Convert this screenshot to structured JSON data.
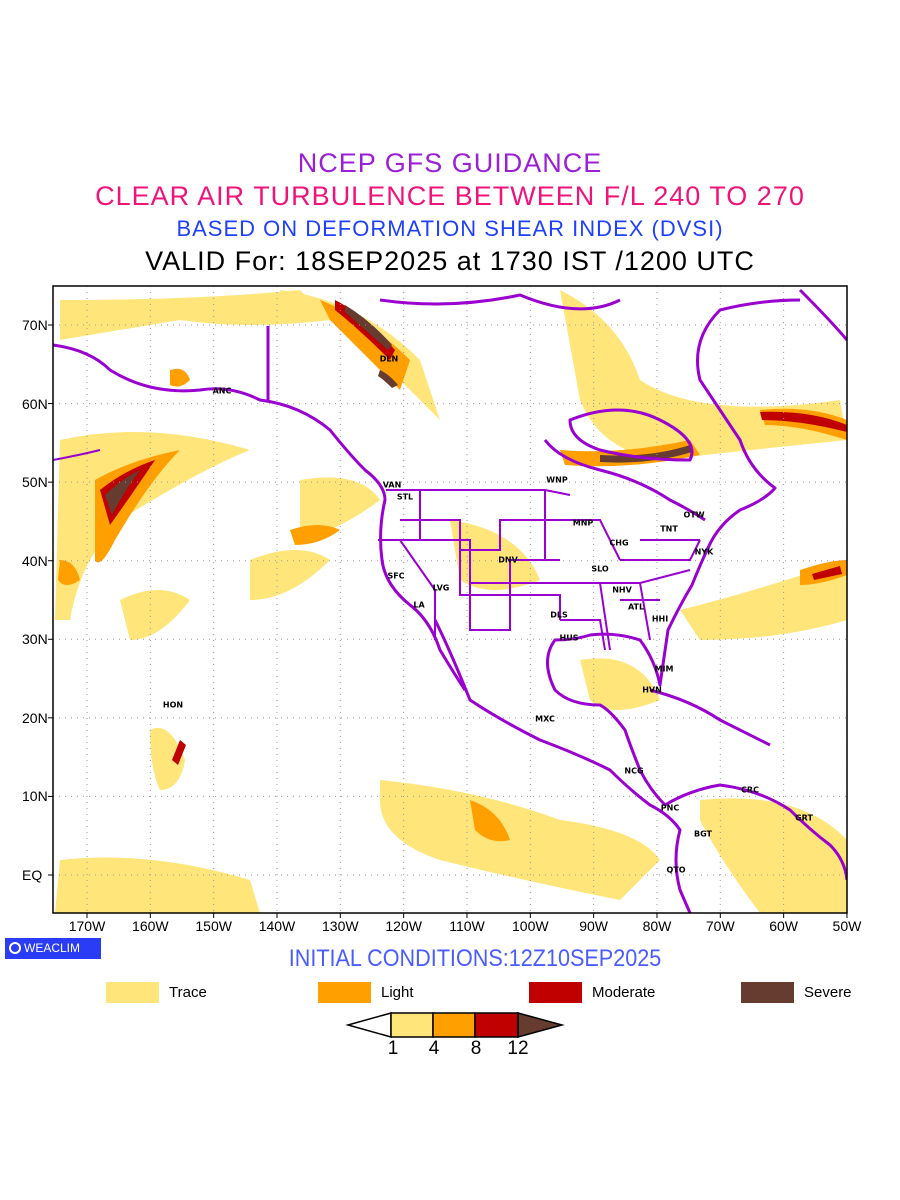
{
  "titles": {
    "line1": "NCEP GFS GUIDANCE",
    "line2": "CLEAR AIR TURBULENCE BETWEEN F/L 240 TO 270",
    "line3": "BASED ON DEFORMATION SHEAR INDEX (DVSI)",
    "line4": "VALID For: 18SEP2025 at 1730 IST /1200 UTC"
  },
  "axes": {
    "lon_ticks": [
      "170W",
      "160W",
      "150W",
      "140W",
      "130W",
      "120W",
      "110W",
      "100W",
      "90W",
      "80W",
      "70W",
      "60W",
      "50W"
    ],
    "lat_ticks": [
      "70N",
      "60N",
      "50N",
      "40N",
      "30N",
      "20N",
      "10N",
      "EQ"
    ]
  },
  "cities": [
    "ANC",
    "DLN",
    "VAN",
    "STL",
    "WNP",
    "MNP",
    "OTW",
    "TNT",
    "CHG",
    "NYK",
    "DNV",
    "SLO",
    "SFC",
    "LVG",
    "LA",
    "NHV",
    "ATL",
    "HHI",
    "DLS",
    "HUS",
    "MIM",
    "HVN",
    "HON",
    "MXC",
    "NCG",
    "PNC",
    "CRC",
    "GRT",
    "BGT",
    "QTO"
  ],
  "brand": "WEACLIM",
  "initial_conditions": "INITIAL CONDITIONS:12Z10SEP2025",
  "legend": [
    {
      "label": "Trace",
      "color": "#ffe57a"
    },
    {
      "label": "Light",
      "color": "#ffa000"
    },
    {
      "label": "Moderate",
      "color": "#c00000"
    },
    {
      "label": "Severe",
      "color": "#663c30"
    }
  ],
  "colorbar": {
    "levels": [
      "1",
      "4",
      "8",
      "12"
    ]
  },
  "colors": {
    "coastline": "#9a00d0",
    "grid": "#999999"
  }
}
